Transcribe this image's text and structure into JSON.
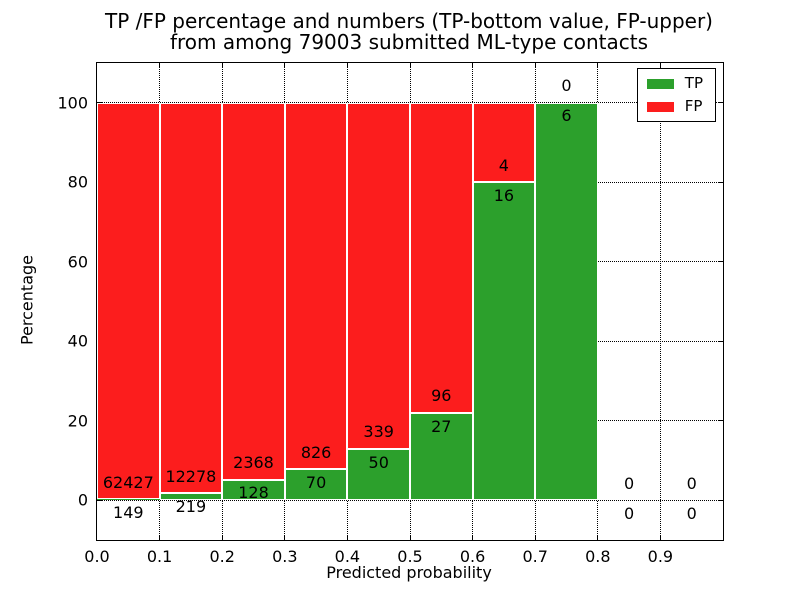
{
  "figure": {
    "title_line1": "TP /FP percentage and numbers (TP-bottom value, FP-upper)",
    "title_line2": "from among 79003 submitted ML-type contacts"
  },
  "chart_data": {
    "type": "bar",
    "subtype": "percent_stacked_histogram",
    "title": "TP /FP percentage and numbers (TP-bottom value, FP-upper) from among 79003 submitted ML-type contacts",
    "total_submitted_contacts": 79003,
    "xlabel": "Predicted probability",
    "ylabel": "Percentage",
    "xlim": [
      0.0,
      1.0
    ],
    "ylim": [
      -10,
      110
    ],
    "x_ticks": [
      "0.0",
      "0.1",
      "0.2",
      "0.3",
      "0.4",
      "0.5",
      "0.6",
      "0.7",
      "0.8",
      "0.9"
    ],
    "y_ticks": [
      0,
      20,
      40,
      60,
      80,
      100
    ],
    "grid": true,
    "grid_style": "black dotted, both axes",
    "legend": {
      "position": "upper right",
      "entries": [
        {
          "label": "TP",
          "color": "#2ca02c"
        },
        {
          "label": "FP",
          "color": "#fc1d1d"
        }
      ]
    },
    "label_note": "TP count printed below stack boundary, FP count printed above it",
    "bins": [
      {
        "x_start": 0.0,
        "x_end": 0.1,
        "tp": 149,
        "fp": 62427,
        "tp_pct": 0.24,
        "fp_pct": 99.76
      },
      {
        "x_start": 0.1,
        "x_end": 0.2,
        "tp": 219,
        "fp": 12278,
        "tp_pct": 1.75,
        "fp_pct": 98.25
      },
      {
        "x_start": 0.2,
        "x_end": 0.3,
        "tp": 128,
        "fp": 2368,
        "tp_pct": 5.13,
        "fp_pct": 94.87
      },
      {
        "x_start": 0.3,
        "x_end": 0.4,
        "tp": 70,
        "fp": 826,
        "tp_pct": 7.81,
        "fp_pct": 92.19
      },
      {
        "x_start": 0.4,
        "x_end": 0.5,
        "tp": 50,
        "fp": 339,
        "tp_pct": 12.85,
        "fp_pct": 87.15
      },
      {
        "x_start": 0.5,
        "x_end": 0.6,
        "tp": 27,
        "fp": 96,
        "tp_pct": 21.95,
        "fp_pct": 78.05
      },
      {
        "x_start": 0.6,
        "x_end": 0.7,
        "tp": 16,
        "fp": 4,
        "tp_pct": 80.0,
        "fp_pct": 20.0
      },
      {
        "x_start": 0.7,
        "x_end": 0.8,
        "tp": 6,
        "fp": 0,
        "tp_pct": 100.0,
        "fp_pct": 0.0
      },
      {
        "x_start": 0.8,
        "x_end": 0.9,
        "tp": 0,
        "fp": 0,
        "tp_pct": 0.0,
        "fp_pct": 0.0
      },
      {
        "x_start": 0.9,
        "x_end": 1.0,
        "tp": 0,
        "fp": 0,
        "tp_pct": 0.0,
        "fp_pct": 0.0
      }
    ]
  }
}
